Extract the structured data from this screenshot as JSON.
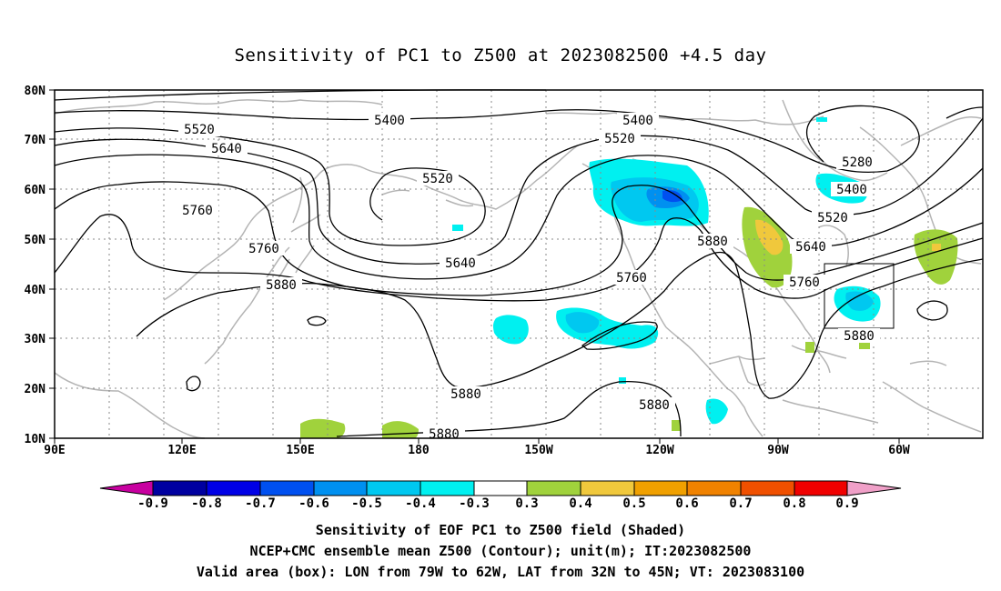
{
  "title": "Sensitivity of PC1 to Z500 at 2023082500 +4.5 day",
  "lat_labels": [
    "80N",
    "70N",
    "60N",
    "50N",
    "40N",
    "30N",
    "20N",
    "10N"
  ],
  "lon_labels": [
    "90E",
    "120E",
    "150E",
    "180",
    "150W",
    "120W",
    "90W",
    "60W"
  ],
  "contour_labels": [
    "5520",
    "5400",
    "5400",
    "5520",
    "5640",
    "5520",
    "5280",
    "5400",
    "5520",
    "5760",
    "5760",
    "5640",
    "5880",
    "5640",
    "5880",
    "5760",
    "5760",
    "5880",
    "5880",
    "5880",
    "5880",
    "5880"
  ],
  "colorbar": {
    "ticks": [
      "-0.9",
      "-0.8",
      "-0.7",
      "-0.6",
      "-0.5",
      "-0.4",
      "-0.3",
      "0.3",
      "0.4",
      "0.5",
      "0.6",
      "0.7",
      "0.8",
      "0.9"
    ],
    "colors": {
      "neg_0_9": "#c800a0",
      "neg_0_8": "#0000a0",
      "neg_0_7": "#0000e6",
      "neg_0_6": "#0050f0",
      "neg_0_5": "#0090f0",
      "neg_0_4": "#00c8f0",
      "neg_0_3": "#00f0f0",
      "zero": "#ffffff",
      "pos_0_3": "#a0d23c",
      "pos_0_4": "#f0c83c",
      "pos_0_5": "#f0a000",
      "pos_0_6": "#f08200",
      "pos_0_7": "#f05000",
      "pos_0_8": "#f00000",
      "pos_0_9": "#f0a0c8"
    }
  },
  "captions": [
    "Sensitivity of EOF PC1 to Z500 field (Shaded)",
    "NCEP+CMC ensemble mean Z500 (Contour); unit(m); IT:2023082500",
    "Valid area (box): LON from 79W to 62W, LAT from 32N to 45N; VT: 2023083100"
  ]
}
